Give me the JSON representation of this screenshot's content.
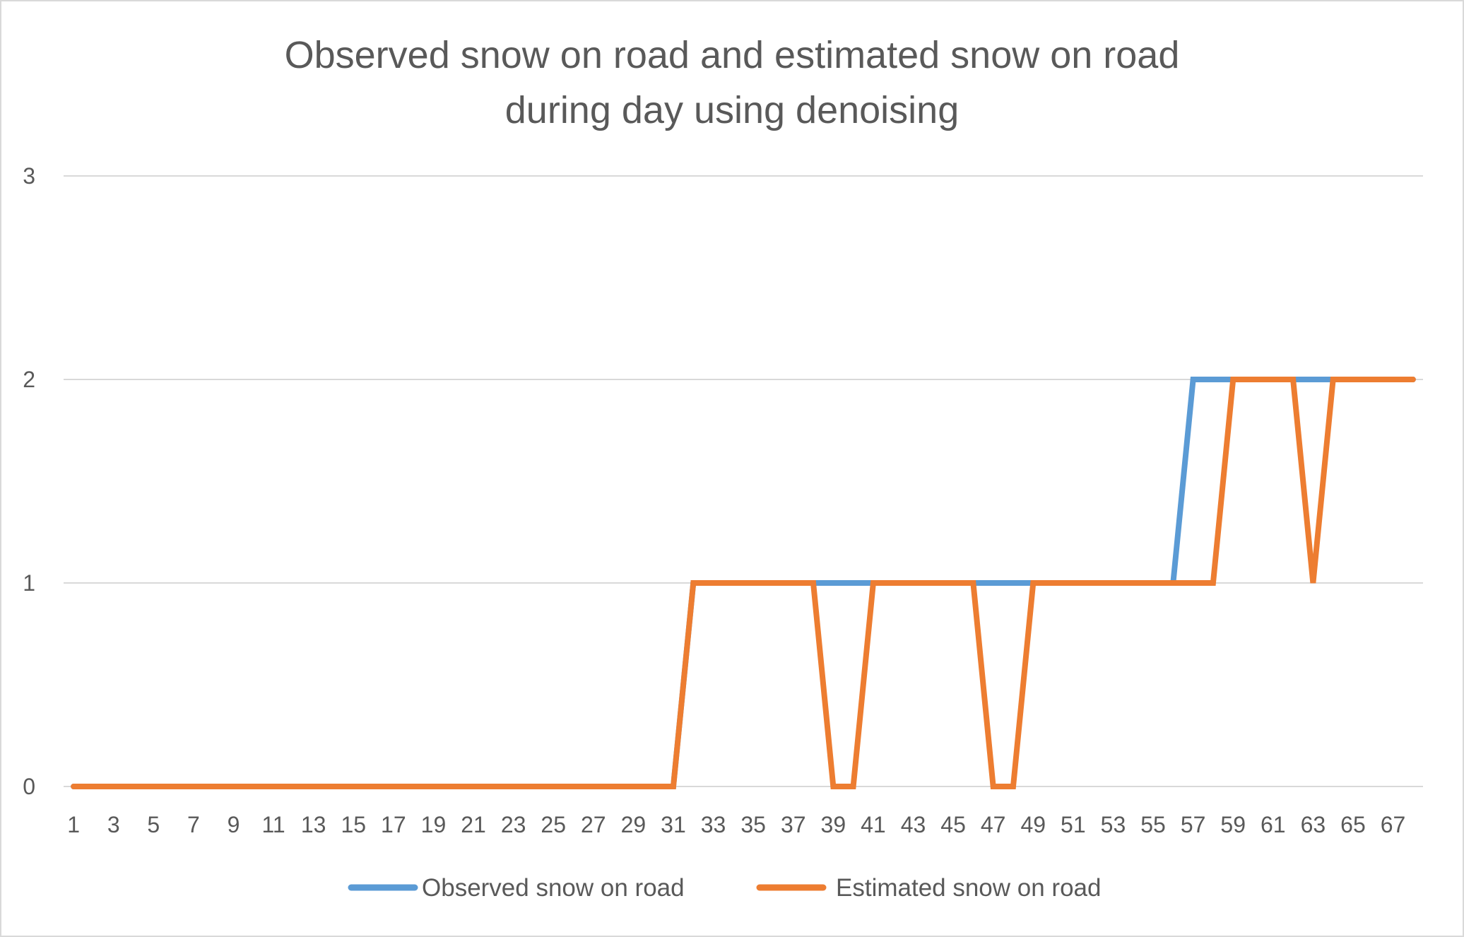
{
  "chart_data": {
    "type": "line",
    "title_lines": [
      "Observed snow on road and estimated snow on road",
      "during day using denoising"
    ],
    "xlabel": "",
    "ylabel": "",
    "ylim": [
      0,
      3
    ],
    "yticks": [
      0,
      1,
      2,
      3
    ],
    "x": [
      1,
      2,
      3,
      4,
      5,
      6,
      7,
      8,
      9,
      10,
      11,
      12,
      13,
      14,
      15,
      16,
      17,
      18,
      19,
      20,
      21,
      22,
      23,
      24,
      25,
      26,
      27,
      28,
      29,
      30,
      31,
      32,
      33,
      34,
      35,
      36,
      37,
      38,
      39,
      40,
      41,
      42,
      43,
      44,
      45,
      46,
      47,
      48,
      49,
      50,
      51,
      52,
      53,
      54,
      55,
      56,
      57,
      58,
      59,
      60,
      61,
      62,
      63,
      64,
      65,
      66,
      67,
      68
    ],
    "xticks": [
      1,
      3,
      5,
      7,
      9,
      11,
      13,
      15,
      17,
      19,
      21,
      23,
      25,
      27,
      29,
      31,
      33,
      35,
      37,
      39,
      41,
      43,
      45,
      47,
      49,
      51,
      53,
      55,
      57,
      59,
      61,
      63,
      65,
      67
    ],
    "grid": true,
    "legend_position": "bottom",
    "series": [
      {
        "name": "Observed snow on road",
        "color": "#5b9bd5",
        "values": [
          0,
          0,
          0,
          0,
          0,
          0,
          0,
          0,
          0,
          0,
          0,
          0,
          0,
          0,
          0,
          0,
          0,
          0,
          0,
          0,
          0,
          0,
          0,
          0,
          0,
          0,
          0,
          0,
          0,
          0,
          0,
          1,
          1,
          1,
          1,
          1,
          1,
          1,
          1,
          1,
          1,
          1,
          1,
          1,
          1,
          1,
          1,
          1,
          1,
          1,
          1,
          1,
          1,
          1,
          1,
          1,
          2,
          2,
          2,
          2,
          2,
          2,
          2,
          2,
          2,
          2,
          2,
          2
        ]
      },
      {
        "name": "Estimated snow on road",
        "color": "#ed7d31",
        "values": [
          0,
          0,
          0,
          0,
          0,
          0,
          0,
          0,
          0,
          0,
          0,
          0,
          0,
          0,
          0,
          0,
          0,
          0,
          0,
          0,
          0,
          0,
          0,
          0,
          0,
          0,
          0,
          0,
          0,
          0,
          0,
          1,
          1,
          1,
          1,
          1,
          1,
          1,
          0,
          0,
          1,
          1,
          1,
          1,
          1,
          1,
          0,
          0,
          1,
          1,
          1,
          1,
          1,
          1,
          1,
          1,
          1,
          1,
          2,
          2,
          2,
          2,
          1,
          2,
          2,
          2,
          2,
          2
        ]
      }
    ]
  }
}
